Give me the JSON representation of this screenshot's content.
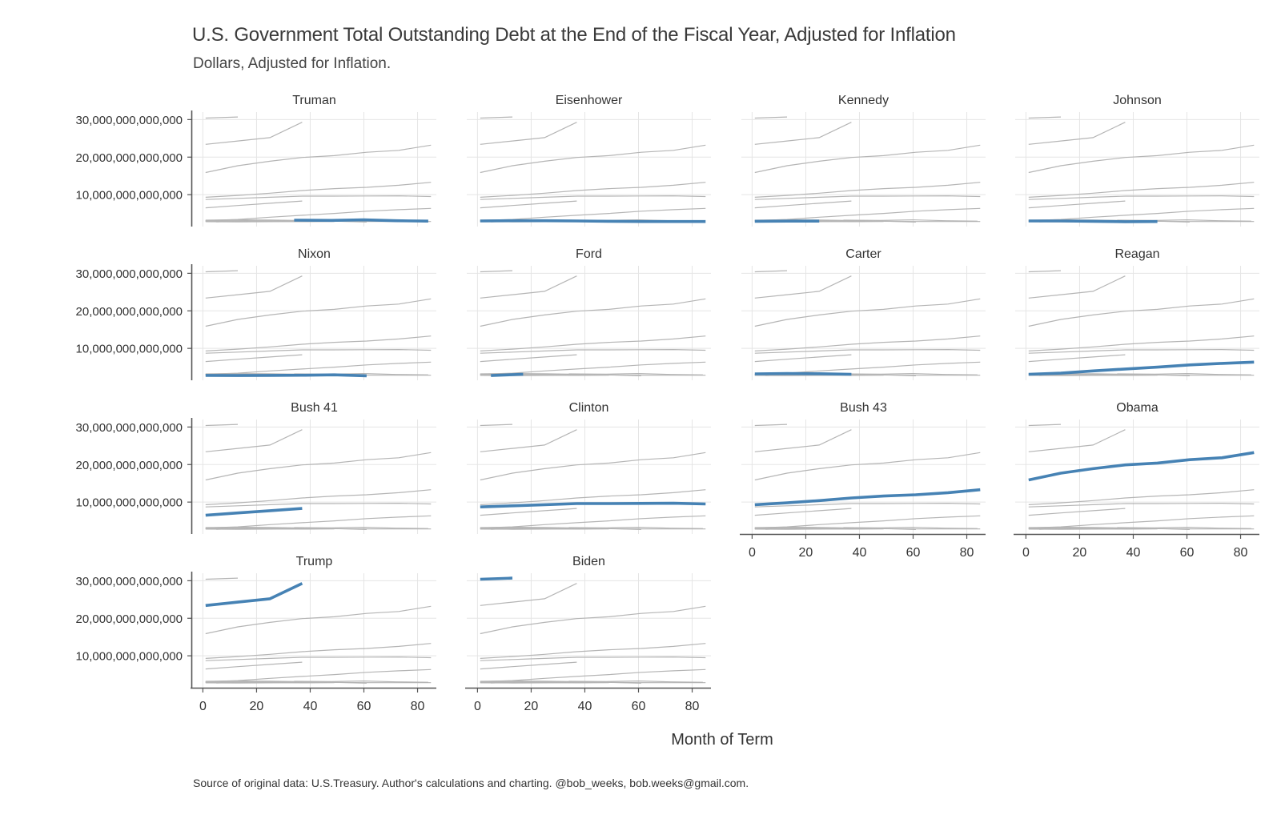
{
  "title": "U.S. Government Total Outstanding Debt at the End of the Fiscal Year, Adjusted for Inflation",
  "subtitle": "Dollars, Adjusted for Inflation.",
  "caption": "Source of original data: U.S.Treasury. Author's calculations and charting. @bob_weeks, bob.weeks@gmail.com.",
  "colors": {
    "highlight": "#4682b4",
    "context": "#b5b5b5",
    "grid": "#e5e5e5",
    "axis": "#555555"
  },
  "chart_data": {
    "type": "line",
    "layout": "small-multiples",
    "xlabel": "Month of Term",
    "ylabel": "",
    "xlim": [
      -4,
      87
    ],
    "ylim": [
      1500000000000,
      32000000000000
    ],
    "x_ticks": [
      0,
      20,
      40,
      60,
      80
    ],
    "x_tick_labels": [
      "0",
      "20",
      "40",
      "60",
      "80"
    ],
    "y_ticks": [
      10000000000000,
      20000000000000,
      30000000000000
    ],
    "y_tick_labels": [
      "10,000,000,000,000",
      "20,000,000,000,000",
      "30,000,000,000,000"
    ],
    "grid": true,
    "facets": [
      "Truman",
      "Eisenhower",
      "Kennedy",
      "Johnson",
      "Nixon",
      "Ford",
      "Carter",
      "Reagan",
      "Bush 41",
      "Clinton",
      "Bush 43",
      "Obama",
      "Trump",
      "Biden"
    ],
    "series": [
      {
        "name": "Truman",
        "x": [
          34,
          48,
          60,
          72,
          84
        ],
        "y": [
          3200000000000,
          3150000000000,
          3300000000000,
          3050000000000,
          2950000000000
        ]
      },
      {
        "name": "Eisenhower",
        "x": [
          1,
          13,
          25,
          37,
          49,
          61,
          73,
          85
        ],
        "y": [
          3000000000000,
          3050000000000,
          3050000000000,
          3000000000000,
          2900000000000,
          2850000000000,
          2850000000000,
          2850000000000
        ]
      },
      {
        "name": "Kennedy",
        "x": [
          1,
          13,
          25
        ],
        "y": [
          2900000000000,
          2950000000000,
          2950000000000
        ]
      },
      {
        "name": "Johnson",
        "x": [
          1,
          13,
          25,
          37,
          49
        ],
        "y": [
          3000000000000,
          3000000000000,
          2900000000000,
          2800000000000,
          2850000000000
        ]
      },
      {
        "name": "Nixon",
        "x": [
          1,
          13,
          25,
          37,
          49,
          61
        ],
        "y": [
          2800000000000,
          2750000000000,
          2800000000000,
          2850000000000,
          2950000000000,
          2700000000000
        ]
      },
      {
        "name": "Ford",
        "x": [
          5,
          17
        ],
        "y": [
          2750000000000,
          3100000000000
        ]
      },
      {
        "name": "Carter",
        "x": [
          1,
          13,
          25,
          37
        ],
        "y": [
          3200000000000,
          3300000000000,
          3250000000000,
          3100000000000
        ]
      },
      {
        "name": "Reagan",
        "x": [
          1,
          13,
          25,
          37,
          49,
          61,
          73,
          85
        ],
        "y": [
          3100000000000,
          3400000000000,
          4000000000000,
          4500000000000,
          5000000000000,
          5600000000000,
          6000000000000,
          6350000000000
        ]
      },
      {
        "name": "Bush 41",
        "x": [
          1,
          13,
          25,
          37
        ],
        "y": [
          6500000000000,
          7100000000000,
          7700000000000,
          8300000000000
        ]
      },
      {
        "name": "Clinton",
        "x": [
          1,
          13,
          25,
          37,
          49,
          61,
          73,
          85
        ],
        "y": [
          8700000000000,
          9000000000000,
          9300000000000,
          9600000000000,
          9600000000000,
          9650000000000,
          9700000000000,
          9500000000000
        ]
      },
      {
        "name": "Bush 43",
        "x": [
          1,
          13,
          25,
          37,
          49,
          61,
          73,
          85
        ],
        "y": [
          9300000000000,
          9800000000000,
          10400000000000,
          11100000000000,
          11600000000000,
          11950000000000,
          12500000000000,
          13300000000000
        ]
      },
      {
        "name": "Obama",
        "x": [
          1,
          13,
          25,
          37,
          49,
          61,
          73,
          85
        ],
        "y": [
          15900000000000,
          17700000000000,
          18900000000000,
          19900000000000,
          20400000000000,
          21300000000000,
          21800000000000,
          23200000000000
        ]
      },
      {
        "name": "Trump",
        "x": [
          1,
          13,
          25,
          37
        ],
        "y": [
          23400000000000,
          24300000000000,
          25200000000000,
          29300000000000
        ]
      },
      {
        "name": "Biden",
        "x": [
          1,
          13
        ],
        "y": [
          30400000000000,
          30700000000000
        ]
      }
    ]
  }
}
